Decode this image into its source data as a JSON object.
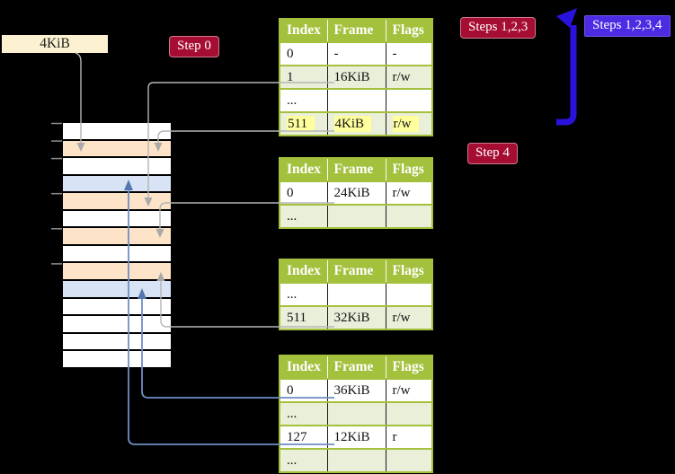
{
  "labels": {
    "frame_box": "4KiB",
    "step0": "Step 0",
    "steps_123": "Steps 1,2,3",
    "steps_1234": "Steps 1,2,3,4",
    "step4": "Step 4"
  },
  "table_headers": [
    "Index",
    "Frame",
    "Flags"
  ],
  "tables": [
    {
      "rows": [
        [
          "0",
          "-",
          "-"
        ],
        [
          "1",
          "16KiB",
          "r/w"
        ],
        [
          "...",
          "",
          ""
        ],
        [
          "511",
          "4KiB",
          "r/w"
        ]
      ]
    },
    {
      "rows": [
        [
          "0",
          "24KiB",
          "r/w"
        ],
        [
          "...",
          "",
          ""
        ]
      ]
    },
    {
      "rows": [
        [
          "...",
          "",
          ""
        ],
        [
          "511",
          "32KiB",
          "r/w"
        ]
      ]
    },
    {
      "rows": [
        [
          "0",
          "36KiB",
          "r/w"
        ],
        [
          "...",
          "",
          ""
        ],
        [
          "127",
          "12KiB",
          "r"
        ],
        [
          "...",
          "",
          ""
        ]
      ]
    }
  ],
  "memory": {
    "rows": [
      "free",
      "table",
      "free",
      "page",
      "table",
      "free",
      "table",
      "free",
      "table",
      "page",
      "free",
      "free",
      "free",
      "free"
    ]
  },
  "colors": {
    "badge_crimson": "#a60d33",
    "badge_blueviolet": "#4c2be3",
    "frame_label_bg": "#fcf1d1",
    "table_header_green": "#a3c13c",
    "table_alt_row_green": "#e9efd8",
    "highlight_yellow": "#ffff9e",
    "memory_table_frame": "#fde3c8",
    "memory_mapped_page": "#d8e4f5",
    "connector_gray": "#b5b5b5",
    "connector_blue": "#6e8fc1",
    "flow_arrow_blue": "#2a12dd"
  }
}
